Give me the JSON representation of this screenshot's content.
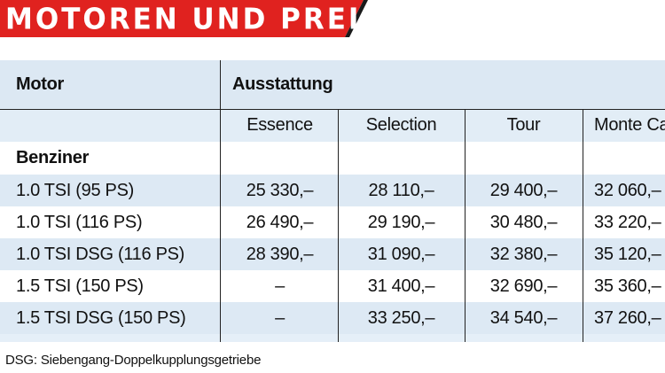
{
  "banner": {
    "title": "MOTOREN UND PREISE"
  },
  "table": {
    "header": {
      "motor_label": "Motor",
      "ausstattung_label": "Ausstattung"
    },
    "trim_levels": [
      "Essence",
      "Selection",
      "Tour",
      "Monte Ca"
    ],
    "category": "Benziner",
    "rows": [
      {
        "motor": "1.0 TSI (95 PS)",
        "prices": [
          "25 330,–",
          "28 110,–",
          "29 400,–",
          "32 060,–"
        ]
      },
      {
        "motor": "1.0 TSI (116 PS)",
        "prices": [
          "26 490,–",
          "29 190,–",
          "30 480,–",
          "33 220,–"
        ]
      },
      {
        "motor": "1.0 TSI DSG (116 PS)",
        "prices": [
          "28 390,–",
          "31 090,–",
          "32 380,–",
          "35 120,–"
        ]
      },
      {
        "motor": "1.5 TSI (150 PS)",
        "prices": [
          "–",
          "31 400,–",
          "32 690,–",
          "35 360,–"
        ]
      },
      {
        "motor": "1.5 TSI DSG (150 PS)",
        "prices": [
          "–",
          "33 250,–",
          "34 540,–",
          "37 260,–"
        ]
      }
    ]
  },
  "footnote": "DSG: Siebengang-Doppelkupplungsgetriebe",
  "colors": {
    "banner_red": "#e0221f",
    "banner_dark": "#1a1a1a",
    "table_blue": "#dde9f4"
  }
}
